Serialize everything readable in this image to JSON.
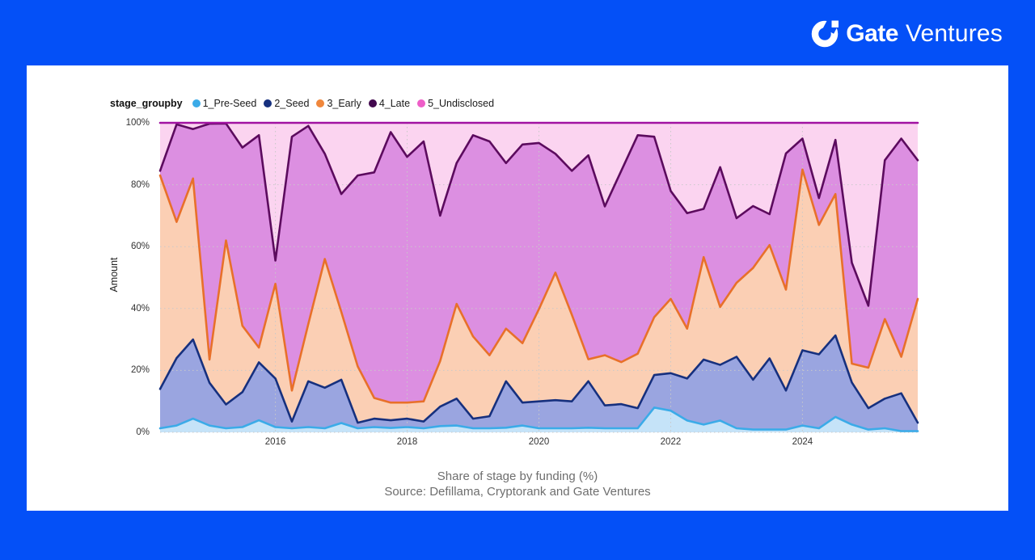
{
  "header": {
    "logo": {
      "icon": "gate-ring-icon",
      "brand": "Gate",
      "suffix": "Ventures"
    }
  },
  "colors": {
    "page_background": "#0450f7",
    "card_background": "#ffffff",
    "logo_text": "#ffffff",
    "gridline": "#c9c9c9",
    "tick_text": "#333333",
    "caption_text": "#6e6e6e"
  },
  "chart": {
    "legend_title": "stage_groupby",
    "y_axis": {
      "label": "Amount",
      "ticks": [
        {
          "label": "100%",
          "value": 100
        },
        {
          "label": "80%",
          "value": 80
        },
        {
          "label": "60%",
          "value": 60
        },
        {
          "label": "40%",
          "value": 40
        },
        {
          "label": "20%",
          "value": 20
        },
        {
          "label": "0%",
          "value": 0
        }
      ]
    },
    "captions": {
      "title": "Share of stage by funding (%)",
      "source": "Source: Defillama, Cryptorank and Gate Ventures"
    }
  },
  "chart_data": {
    "type": "area",
    "stacked": true,
    "normalized_percent": true,
    "title": "Share of stage by funding (%)",
    "xlabel": "",
    "ylabel": "Amount",
    "ylim": [
      0,
      100
    ],
    "grid": true,
    "h_gridlines": [
      0,
      20,
      40,
      60,
      80
    ],
    "legend_position": "top",
    "x_ticks": [
      {
        "label": "2016",
        "index": 7
      },
      {
        "label": "2018",
        "index": 15
      },
      {
        "label": "2020",
        "index": 23
      },
      {
        "label": "2022",
        "index": 31
      },
      {
        "label": "2024",
        "index": 39
      }
    ],
    "x": [
      "2014-Q2",
      "2014-Q3",
      "2014-Q4",
      "2015-Q1",
      "2015-Q2",
      "2015-Q3",
      "2015-Q4",
      "2016-Q1",
      "2016-Q2",
      "2016-Q3",
      "2016-Q4",
      "2017-Q1",
      "2017-Q2",
      "2017-Q3",
      "2017-Q4",
      "2018-Q1",
      "2018-Q2",
      "2018-Q3",
      "2018-Q4",
      "2019-Q1",
      "2019-Q2",
      "2019-Q3",
      "2019-Q4",
      "2020-Q1",
      "2020-Q2",
      "2020-Q3",
      "2020-Q4",
      "2021-Q1",
      "2021-Q2",
      "2021-Q3",
      "2021-Q4",
      "2022-Q1",
      "2022-Q2",
      "2022-Q3",
      "2022-Q4",
      "2023-Q1",
      "2023-Q2",
      "2023-Q3",
      "2023-Q4",
      "2024-Q1",
      "2024-Q2",
      "2024-Q3",
      "2024-Q4",
      "2025-Q1",
      "2025-Q2",
      "2025-Q3",
      "2025-Q4"
    ],
    "series": [
      {
        "name": "1_Pre-Seed",
        "color": "#3babe8",
        "dot": "#3babe8",
        "fill": "#c5e3f8",
        "values": [
          1.3,
          2.2,
          4.4,
          2.2,
          1.3,
          1.7,
          3.9,
          1.7,
          1.3,
          1.7,
          1.3,
          3,
          1.3,
          1.7,
          1.4,
          1.7,
          1.3,
          2,
          2.2,
          1.3,
          1.3,
          1.5,
          2.2,
          1.3,
          1.3,
          1.3,
          1.5,
          1.3,
          1.3,
          1.3,
          8,
          7,
          3.8,
          2.5,
          3.8,
          1.3,
          0.9,
          0.9,
          0.9,
          2.2,
          1.3,
          5,
          2.5,
          0.9,
          1.3,
          0.4,
          0.4
        ]
      },
      {
        "name": "2_Seed",
        "color": "#16307e",
        "dot": "#16307e",
        "fill": "#9aa5e0",
        "values": [
          12.7,
          21.8,
          25.6,
          13.8,
          7.7,
          11.3,
          18.7,
          15.7,
          2.2,
          14.8,
          13.1,
          14,
          1.8,
          2.7,
          2.5,
          2.7,
          2.2,
          6.3,
          8.7,
          3.1,
          3.9,
          15,
          7.4,
          8.7,
          9.1,
          8.7,
          15,
          7.4,
          7.8,
          6.5,
          10.5,
          12.1,
          13.6,
          21,
          18,
          23.1,
          16.1,
          23,
          12.6,
          24.3,
          23.9,
          26.3,
          13.6,
          6.9,
          9.6,
          12.2,
          2.7
        ]
      },
      {
        "name": "3_Early",
        "color": "#e8702a",
        "dot": "#f0873c",
        "fill": "#fbcfb4",
        "values": [
          69,
          44,
          52,
          7.5,
          53,
          21.4,
          4.8,
          30.6,
          10,
          18.5,
          41.6,
          21.9,
          18.2,
          6.7,
          5.7,
          5.2,
          6.5,
          14.7,
          30.6,
          26.6,
          19.7,
          17,
          19.2,
          29.8,
          41.2,
          28,
          7.1,
          16.2,
          13.6,
          17.6,
          18.7,
          24,
          16.1,
          33.1,
          18.7,
          23.9,
          36.1,
          36.6,
          32.6,
          58.4,
          41.8,
          45.7,
          6.1,
          13.1,
          25.7,
          11.8,
          40
        ]
      },
      {
        "name": "4_Late",
        "color": "#5c0b5e",
        "dot": "#42094e",
        "fill": "#dc8fe1",
        "values": [
          1.5,
          31.5,
          16,
          76.2,
          37.8,
          57.6,
          68.6,
          7.5,
          82,
          64,
          34,
          38.1,
          61.7,
          72.9,
          87.4,
          79.4,
          84,
          47,
          45.5,
          65,
          69.1,
          53.5,
          64.2,
          53.7,
          38.4,
          46.5,
          65.9,
          48.1,
          61.8,
          70.6,
          58.3,
          34.9,
          37.3,
          15.6,
          45.2,
          20.9,
          20,
          10,
          44,
          10,
          8.7,
          17.5,
          32.6,
          20,
          51.3,
          70.5,
          44.8
        ]
      },
      {
        "name": "5_Undisclosed",
        "color": "#a112a1",
        "dot": "#ee5ec8",
        "fill": "#fbd4f0",
        "values": [
          15.5,
          0.5,
          2,
          0.3,
          0.2,
          8,
          4,
          44.5,
          4.5,
          1,
          10,
          23,
          17,
          16,
          3,
          11,
          6,
          30,
          13,
          4,
          6,
          13,
          7,
          6.5,
          10,
          15.5,
          10.5,
          27,
          15.5,
          4,
          4.5,
          22,
          29.2,
          27.8,
          14.3,
          30.8,
          26.9,
          29.5,
          9.9,
          5.1,
          24.3,
          5.5,
          45.2,
          59.1,
          12.1,
          5.1,
          12.1
        ]
      }
    ]
  }
}
